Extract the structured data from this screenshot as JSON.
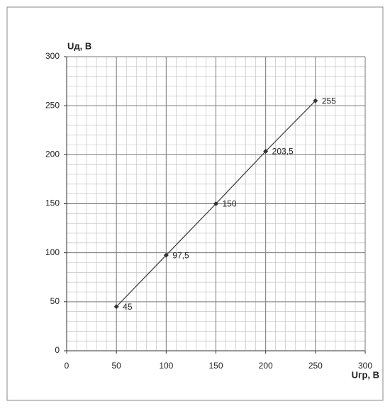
{
  "chart_data": {
    "type": "line",
    "y_label": "Uд, В",
    "x_label": "Uгр, В",
    "x": [
      50,
      100,
      150,
      200,
      250
    ],
    "values": [
      45,
      97.5,
      150,
      203.5,
      255
    ],
    "value_labels": [
      "45",
      "97,5",
      "150",
      "203,5",
      "255"
    ],
    "color": "#333333",
    "xlim": [
      0,
      300
    ],
    "xticks": [
      0,
      50,
      100,
      150,
      200,
      250,
      300
    ],
    "ylim": [
      0,
      300
    ],
    "yticks": [
      0,
      50,
      100,
      150,
      200,
      250,
      300
    ],
    "grid": true,
    "minor_grid": true
  }
}
